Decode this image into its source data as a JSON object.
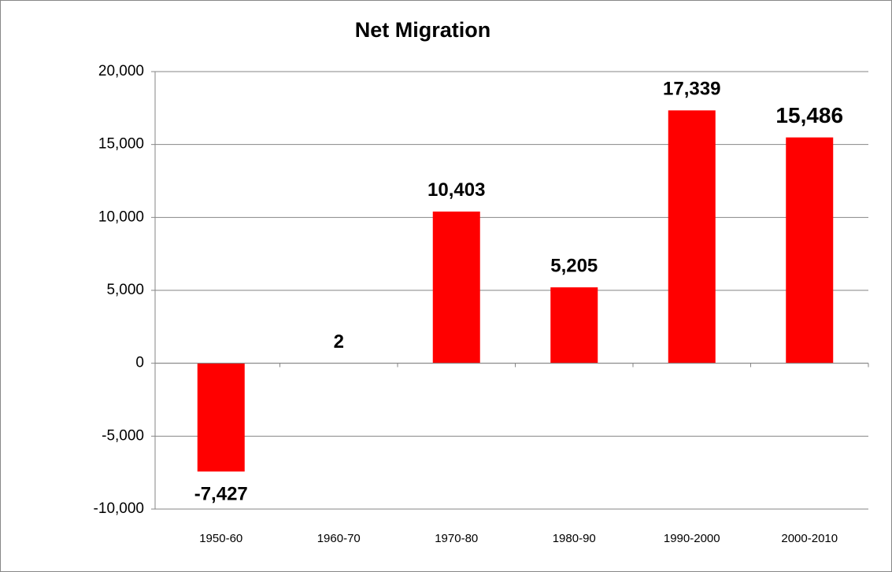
{
  "chart_data": {
    "type": "bar",
    "title": "Net Migration",
    "categories": [
      "1950-60",
      "1960-70",
      "1970-80",
      "1980-90",
      "1990-2000",
      "2000-2010"
    ],
    "values": [
      -7427,
      2,
      10403,
      5205,
      17339,
      15486
    ],
    "value_labels": [
      "-7,427",
      "2",
      "10,403",
      "5,205",
      "17,339",
      "15,486"
    ],
    "color": "#ff0000",
    "ylim": [
      -10000,
      20000
    ],
    "yticks": [
      {
        "value": -10000,
        "label": "-10,000"
      },
      {
        "value": -5000,
        "label": "-5,000"
      },
      0,
      {
        "value": 5000,
        "label": "5,000"
      },
      {
        "value": 10000,
        "label": "10,000"
      },
      {
        "value": 15000,
        "label": "15,000"
      },
      {
        "value": 20000,
        "label": "20,000"
      }
    ],
    "grid": true
  }
}
